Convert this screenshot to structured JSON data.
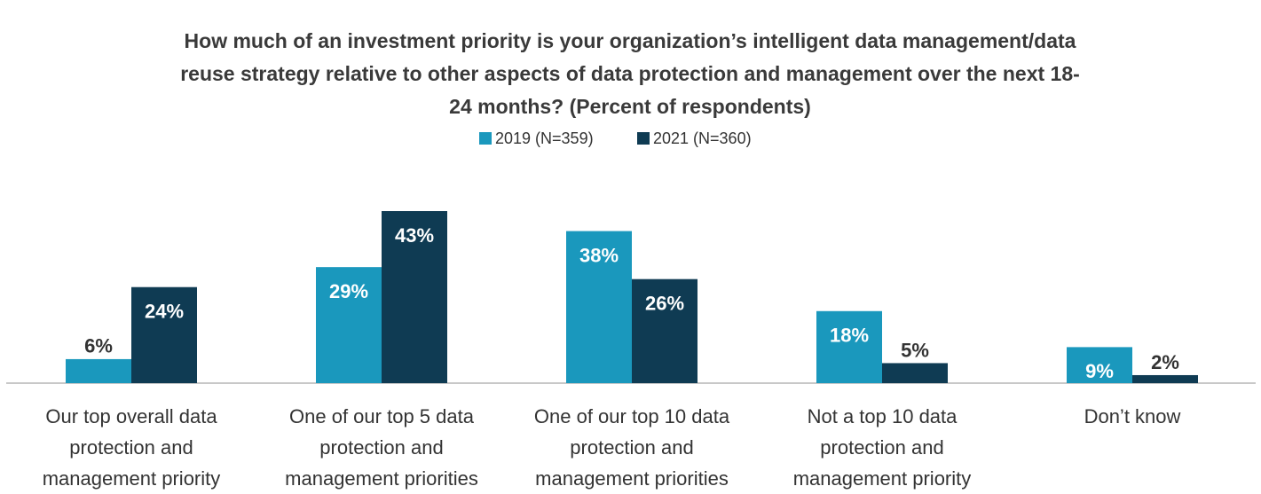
{
  "chart_data": {
    "type": "bar",
    "title": "How much of an investment priority is your organization’s intelligent data management/data reuse strategy relative to other aspects of data protection and management over the next 18-24 months? (Percent of respondents)",
    "categories": [
      "Our top overall data protection and management priority",
      "One of our top 5 data protection and management priorities",
      "One of our top 10 data protection and management priorities",
      "Not a top 10 data protection and management priority",
      "Don’t know"
    ],
    "series": [
      {
        "name": "2019 (N=359)",
        "color": "#1a98bd",
        "values": [
          6,
          29,
          38,
          18,
          9
        ],
        "value_labels": [
          "6%",
          "29%",
          "38%",
          "18%",
          "9%"
        ]
      },
      {
        "name": "2021 (N=360)",
        "color": "#0f3b53",
        "values": [
          24,
          43,
          26,
          5,
          2
        ],
        "value_labels": [
          "24%",
          "43%",
          "26%",
          "5%",
          "2%"
        ]
      }
    ]
  }
}
